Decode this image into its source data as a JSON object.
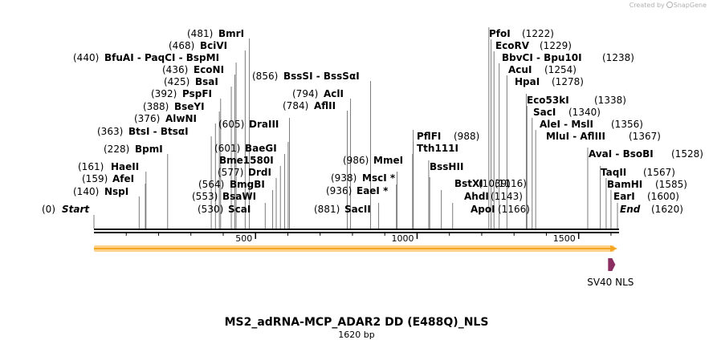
{
  "credit": {
    "prefix": "Created by",
    "brand": "SnapGene"
  },
  "plasmid": {
    "name": "MS2_adRNA-MCP_ADAR2 DD (E488Q)_NLS",
    "size": "1620 bp",
    "length": 1620
  },
  "ruler": {
    "ticks": [
      "500",
      "1000",
      "1500"
    ]
  },
  "feature": {
    "name": "SV40 NLS",
    "start": 1591,
    "end": 1611
  },
  "colors": {
    "orf": "#f5a623",
    "orf_fill": "#fcd28c",
    "feature": "#8b2e62"
  },
  "sites": [
    {
      "pos": "(0)",
      "name": "Start",
      "italic": true,
      "bp": 0,
      "side": "right"
    },
    {
      "pos": "(140)",
      "name": "NspI",
      "bp": 140,
      "side": "right"
    },
    {
      "pos": "(159)",
      "name": "AfeI",
      "bp": 159,
      "side": "right"
    },
    {
      "pos": "(161)",
      "name": "HaeII",
      "bp": 161,
      "side": "right"
    },
    {
      "pos": "(228)",
      "name": "BpmI",
      "bp": 228,
      "side": "right"
    },
    {
      "pos": "(363)",
      "name": "BtsI  -  BtsαI",
      "bp": 363,
      "side": "right"
    },
    {
      "pos": "(376)",
      "name": "AlwNI",
      "bp": 376,
      "side": "right"
    },
    {
      "pos": "(388)",
      "name": "BseYI",
      "bp": 388,
      "side": "right"
    },
    {
      "pos": "(392)",
      "name": "PspFI",
      "bp": 392,
      "side": "right"
    },
    {
      "pos": "(425)",
      "name": "BsaI",
      "bp": 425,
      "side": "right"
    },
    {
      "pos": "(436)",
      "name": "EcoNI",
      "bp": 436,
      "side": "right"
    },
    {
      "pos": "(440)",
      "name": "BfuAI  -  PaqCI  -  BspMI",
      "bp": 440,
      "side": "right"
    },
    {
      "pos": "(468)",
      "name": "BciVI",
      "bp": 468,
      "side": "right"
    },
    {
      "pos": "(481)",
      "name": "BmrI",
      "bp": 481,
      "side": "right"
    },
    {
      "pos": "(530)",
      "name": "ScaI",
      "bp": 530,
      "side": "left"
    },
    {
      "pos": "(553)",
      "name": "BsaWI",
      "bp": 553,
      "side": "left"
    },
    {
      "pos": "(564)",
      "name": "BmgBI",
      "bp": 564,
      "side": "left"
    },
    {
      "pos": "(577)",
      "name": "DrdI",
      "bp": 577,
      "side": "left"
    },
    {
      "pos": "",
      "name": "Bme1580I",
      "bp": 590,
      "side": "left"
    },
    {
      "pos": "(601)",
      "name": "BaeGI",
      "bp": 601,
      "side": "left"
    },
    {
      "pos": "(605)",
      "name": "DraIII",
      "bp": 605,
      "side": "left"
    },
    {
      "pos": "(784)",
      "name": "AflII",
      "bp": 784,
      "side": "right"
    },
    {
      "pos": "(794)",
      "name": "AclI",
      "bp": 794,
      "side": "right"
    },
    {
      "pos": "(856)",
      "name": "BssSI  -  BssSαI",
      "bp": 856,
      "side": "right"
    },
    {
      "pos": "(881)",
      "name": "SacII",
      "bp": 881,
      "side": "left"
    },
    {
      "pos": "(936)",
      "name": "EaeI *",
      "bp": 936,
      "side": "left"
    },
    {
      "pos": "(938)",
      "name": "MscI *",
      "bp": 938,
      "side": "left"
    },
    {
      "pos": "(986)",
      "name": "MmeI",
      "bp": 986,
      "side": "left"
    },
    {
      "pos": "",
      "name": "Tth111I",
      "bp": 988,
      "side": "left"
    },
    {
      "pos": "(988)",
      "name": "PflFI",
      "bp": 988,
      "side": "left"
    },
    {
      "pos": "",
      "name": "BssHII",
      "bp": 1036,
      "side": "left"
    },
    {
      "pos": "(1039)",
      "name": "BstXI",
      "bp": 1039,
      "side": "left"
    },
    {
      "pos": "",
      "name": "AhdI",
      "bp": 1075,
      "side": "left"
    },
    {
      "pos": "",
      "name": "ApoI",
      "bp": 1110,
      "side": "left"
    },
    {
      "pos": "(1116)",
      "name": "SacI",
      "bp": 1116,
      "side": "left"
    },
    {
      "pos": "(1143)",
      "name": "AleI  -  MslI",
      "bp": 1143,
      "side": "left"
    },
    {
      "pos": "(1166)",
      "name": "MluI  -  AflIII",
      "bp": 1166,
      "side": "left"
    },
    {
      "pos": "(1222)",
      "name": "PfoI",
      "bp": 1222,
      "side": "left"
    },
    {
      "pos": "(1229)",
      "name": "EcoRV",
      "bp": 1229,
      "side": "left"
    },
    {
      "pos": "(1238)",
      "name": "BbvCI  -  Bpu10I",
      "bp": 1238,
      "side": "left"
    },
    {
      "pos": "(1254)",
      "name": "AcuI",
      "bp": 1254,
      "side": "left"
    },
    {
      "pos": "(1278)",
      "name": "HpaI",
      "bp": 1278,
      "side": "left"
    },
    {
      "pos": "(1338)",
      "name": "Eco53kI",
      "bp": 1338,
      "side": "left"
    },
    {
      "pos": "(1340)",
      "name": "SacI",
      "bp": 1340,
      "side": "left"
    },
    {
      "pos": "(1356)",
      "name": "AleI  -  MslI",
      "bp": 1356,
      "side": "left"
    },
    {
      "pos": "(1367)",
      "name": "MluI  -  AflIII",
      "bp": 1367,
      "side": "left"
    },
    {
      "pos": "(1528)",
      "name": "AvaI  -  BsoBI",
      "bp": 1528,
      "side": "left"
    },
    {
      "pos": "(1567)",
      "name": "TaqII",
      "bp": 1567,
      "side": "left"
    },
    {
      "pos": "(1585)",
      "name": "BamHI",
      "bp": 1585,
      "side": "left"
    },
    {
      "pos": "(1600)",
      "name": "EarI",
      "bp": 1600,
      "side": "left"
    },
    {
      "pos": "(1620)",
      "name": "End",
      "italic": true,
      "bp": 1620,
      "side": "left"
    }
  ]
}
